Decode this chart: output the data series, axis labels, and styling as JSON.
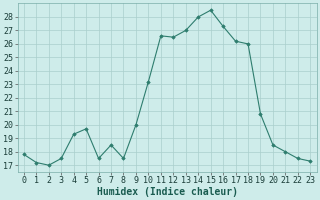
{
  "x": [
    0,
    1,
    2,
    3,
    4,
    5,
    6,
    7,
    8,
    9,
    10,
    11,
    12,
    13,
    14,
    15,
    16,
    17,
    18,
    19,
    20,
    21,
    22,
    23
  ],
  "y": [
    17.8,
    17.2,
    17.0,
    17.5,
    19.3,
    19.7,
    17.5,
    18.5,
    17.5,
    20.0,
    23.2,
    26.6,
    26.5,
    27.0,
    28.0,
    28.5,
    27.3,
    26.2,
    26.0,
    20.8,
    18.5,
    18.0,
    17.5,
    17.3
  ],
  "xlabel": "Humidex (Indice chaleur)",
  "xlim": [
    -0.5,
    23.5
  ],
  "ylim": [
    16.5,
    29.0
  ],
  "yticks": [
    17,
    18,
    19,
    20,
    21,
    22,
    23,
    24,
    25,
    26,
    27,
    28
  ],
  "xticks": [
    0,
    1,
    2,
    3,
    4,
    5,
    6,
    7,
    8,
    9,
    10,
    11,
    12,
    13,
    14,
    15,
    16,
    17,
    18,
    19,
    20,
    21,
    22,
    23
  ],
  "line_color": "#2e7d6e",
  "marker_color": "#2e7d6e",
  "bg_color": "#ceecea",
  "grid_color": "#aacfcc",
  "tick_label_fontsize": 6.0,
  "xlabel_fontsize": 7.0
}
